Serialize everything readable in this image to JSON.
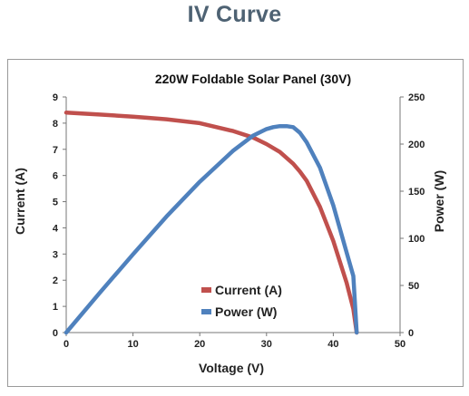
{
  "page_title": "IV Curve",
  "chart_data": {
    "type": "line",
    "title": "220W Foldable Solar Panel (30V)",
    "xlabel": "Voltage (V)",
    "ylabel": "Current (A)",
    "y2label": "Power (W)",
    "xlim": [
      0,
      50
    ],
    "ylim": [
      0,
      9
    ],
    "y2lim": [
      0,
      250
    ],
    "xticks": [
      "0",
      "10",
      "20",
      "30",
      "40",
      "50"
    ],
    "yticks": [
      "0",
      "1",
      "2",
      "3",
      "4",
      "5",
      "6",
      "7",
      "8",
      "9"
    ],
    "y2ticks": [
      "0",
      "50",
      "100",
      "150",
      "200",
      "250"
    ],
    "grid": false,
    "legend_position": "lower-center",
    "series": [
      {
        "name": "Current (A)",
        "axis": "left",
        "color": "#c0504d",
        "x": [
          0,
          5,
          10,
          15,
          20,
          25,
          28,
          30,
          32,
          34,
          35,
          36,
          38,
          40,
          42,
          43,
          43.5
        ],
        "y": [
          8.4,
          8.33,
          8.25,
          8.15,
          8.0,
          7.7,
          7.45,
          7.2,
          6.9,
          6.45,
          6.15,
          5.8,
          4.8,
          3.5,
          1.9,
          0.9,
          0
        ]
      },
      {
        "name": "Power (W)",
        "axis": "right",
        "color": "#4f81bd",
        "x": [
          0,
          5,
          10,
          15,
          20,
          25,
          28,
          30,
          31,
          32,
          33,
          34,
          35,
          36,
          38,
          40,
          42,
          43,
          43.5
        ],
        "y": [
          0,
          42,
          83,
          123,
          160,
          193,
          209,
          216,
          218,
          219,
          219,
          218,
          212,
          202,
          175,
          135,
          85,
          60,
          0
        ]
      }
    ]
  }
}
